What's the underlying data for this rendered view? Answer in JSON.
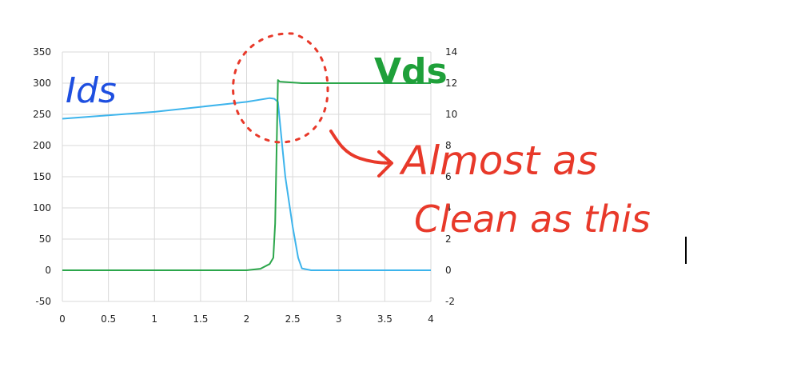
{
  "chart_data": {
    "type": "line",
    "x_ticks": [
      "0",
      "0.5",
      "1",
      "1.5",
      "2",
      "2.5",
      "3",
      "3.5",
      "4"
    ],
    "y_left_ticks": [
      "350",
      "300",
      "250",
      "200",
      "150",
      "100",
      "50",
      "0",
      "-50"
    ],
    "y_right_ticks": [
      "14",
      "12",
      "10",
      "8",
      "6",
      "4",
      "2",
      "0",
      "-2"
    ],
    "xlim": [
      0,
      4
    ],
    "ylim_left": [
      -50,
      350
    ],
    "ylim_right": [
      -2,
      14
    ],
    "grid": true,
    "series": [
      {
        "name": "Ids",
        "axis": "left",
        "color": "#3db4ec",
        "points": [
          [
            0,
            243
          ],
          [
            1.0,
            254
          ],
          [
            2.0,
            270
          ],
          [
            2.25,
            276
          ],
          [
            2.3,
            275
          ],
          [
            2.34,
            270
          ],
          [
            2.37,
            225
          ],
          [
            2.42,
            150
          ],
          [
            2.5,
            70
          ],
          [
            2.56,
            20
          ],
          [
            2.6,
            3
          ],
          [
            2.7,
            0
          ],
          [
            4.0,
            0
          ]
        ]
      },
      {
        "name": "Vds",
        "axis": "right",
        "color": "#2ca64b",
        "points": [
          [
            0,
            0
          ],
          [
            2.0,
            0
          ],
          [
            2.15,
            0.1
          ],
          [
            2.25,
            0.4
          ],
          [
            2.29,
            0.8
          ],
          [
            2.31,
            3.0
          ],
          [
            2.33,
            9.0
          ],
          [
            2.34,
            12.2
          ],
          [
            2.36,
            12.1
          ],
          [
            2.6,
            12.0
          ],
          [
            4.0,
            12.0
          ]
        ]
      }
    ]
  },
  "annotations": {
    "ids_label": "Ids",
    "vds_label": "Vds",
    "note_line1": "Almost as",
    "note_line2": "Clean as this",
    "ink_blue": "#1e4fe0",
    "ink_green": "#1fa03a",
    "ink_red": "#e8392a"
  }
}
